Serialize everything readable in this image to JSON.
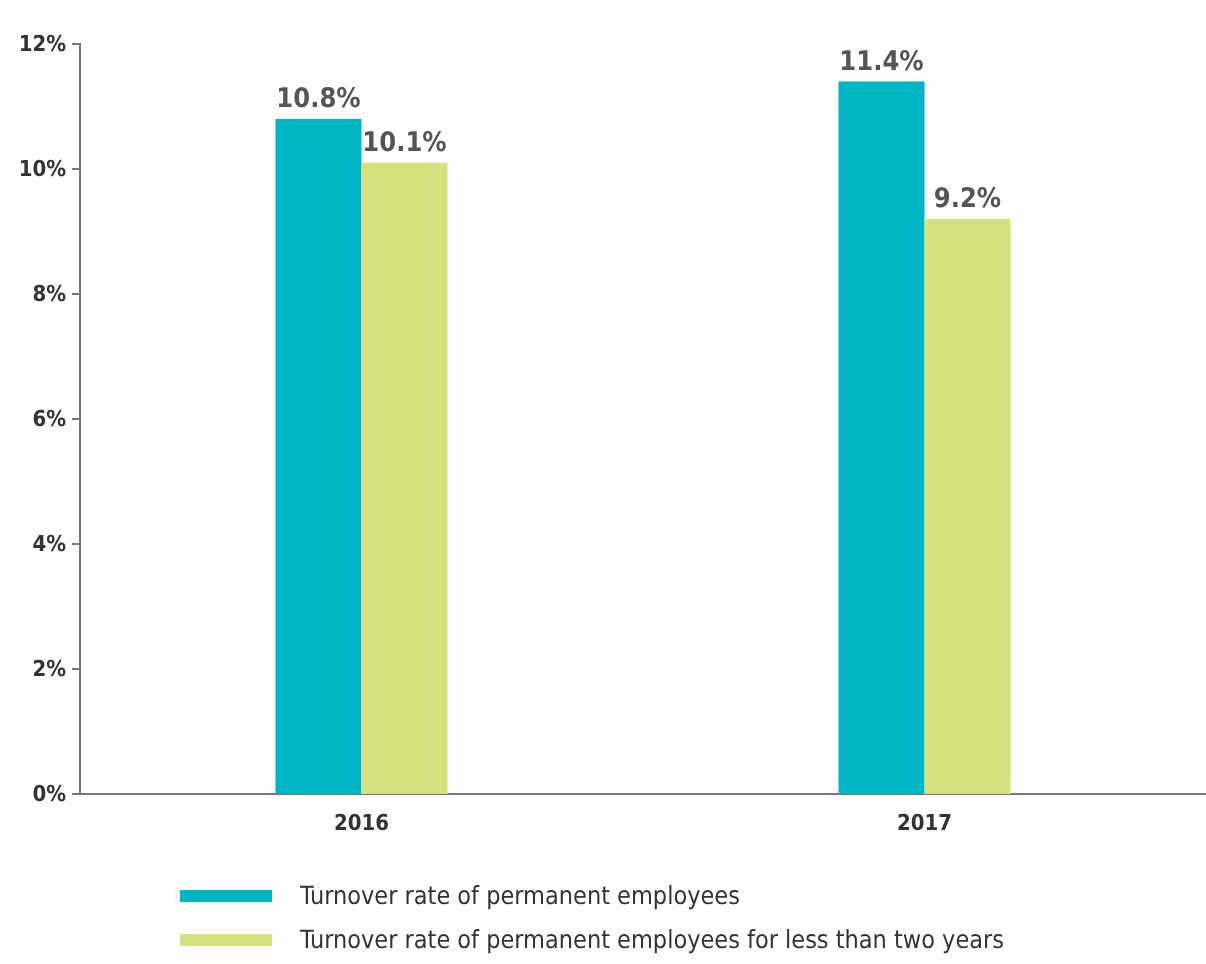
{
  "chart_data": {
    "type": "bar",
    "categories": [
      "2016",
      "2017"
    ],
    "series": [
      {
        "name": "Turnover rate of permanent employees",
        "color": "#00b6c4",
        "values": [
          10.8,
          11.4
        ],
        "value_labels": [
          "10.8%",
          "11.4%"
        ]
      },
      {
        "name": "Turnover rate of permanent employees for less than two years",
        "color": "#d5e17e",
        "values": [
          10.1,
          9.2
        ],
        "value_labels": [
          "10.1%",
          "9.2%"
        ]
      }
    ],
    "ylim": [
      0,
      12
    ],
    "yticks": [
      {
        "value": 0,
        "label": "0%"
      },
      {
        "value": 2,
        "label": "2%"
      },
      {
        "value": 4,
        "label": "4%"
      },
      {
        "value": 6,
        "label": "6%"
      },
      {
        "value": 8,
        "label": "8%"
      },
      {
        "value": 10,
        "label": "10%"
      },
      {
        "value": 12,
        "label": "12%"
      }
    ],
    "grid": false,
    "legend": "bottom"
  }
}
